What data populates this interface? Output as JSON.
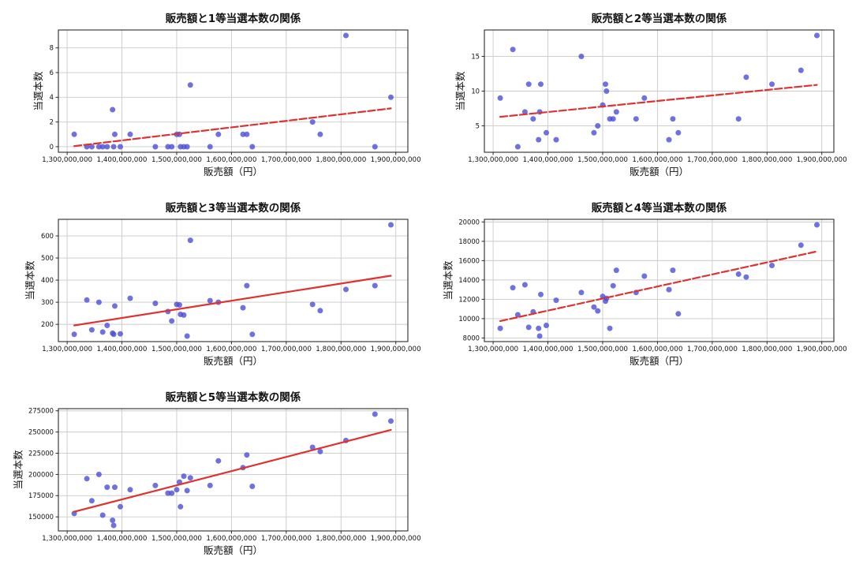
{
  "figure": {
    "background": "#ffffff",
    "grid_color": "#cacaca",
    "spine_color": "#2a2a2a",
    "tick_color": "#2a2a2a",
    "text_color": "#111111",
    "point_color": "#4b4ed6",
    "trend_color": "#e03131"
  },
  "chart_data": [
    {
      "type": "scatter",
      "title": "販売額と1等当選本数の関係",
      "xlabel": "販売額（円）",
      "ylabel": "当選本数",
      "grid": true,
      "legend": "none",
      "xlim": [
        1284000000,
        1922000000
      ],
      "ylim": [
        -0.45,
        9.45
      ],
      "x_ticks": [
        1300000000,
        1400000000,
        1500000000,
        1600000000,
        1700000000,
        1800000000,
        1900000000
      ],
      "x_tick_labels": [
        "1,300,000,000",
        "1,400,000,000",
        "1,500,000,000",
        "1,600,000,000",
        "1,700,000,000",
        "1,800,000,000",
        "1,900,000,000"
      ],
      "y_ticks": [
        0,
        2,
        4,
        6,
        8
      ],
      "y_tick_labels": [
        "0",
        "2",
        "4",
        "6",
        "8"
      ],
      "x": [
        1313000000,
        1336000000,
        1345000000,
        1358000000,
        1365000000,
        1373000000,
        1383000000,
        1385000000,
        1387000000,
        1397000000,
        1415000000,
        1461000000,
        1484000000,
        1491000000,
        1500000000,
        1505000000,
        1507000000,
        1513000000,
        1519000000,
        1525000000,
        1561000000,
        1576000000,
        1621000000,
        1628000000,
        1638000000,
        1748000000,
        1762000000,
        1809000000,
        1862000000,
        1891000000
      ],
      "y": [
        1,
        0,
        0,
        0,
        0,
        0,
        3,
        0,
        1,
        0,
        1,
        0,
        0,
        0,
        1,
        1,
        0,
        0,
        0,
        5,
        0,
        1,
        1,
        1,
        0,
        2,
        1,
        9,
        0,
        4
      ],
      "trend": {
        "x": [
          1313000000,
          1891000000
        ],
        "y": [
          0.05,
          3.1
        ],
        "style": "dashed"
      }
    },
    {
      "type": "scatter",
      "title": "販売額と2等当選本数の関係",
      "xlabel": "販売額（円）",
      "ylabel": "当選本数",
      "grid": true,
      "legend": "none",
      "xlim": [
        1284000000,
        1922000000
      ],
      "ylim": [
        1.2,
        18.8
      ],
      "x_ticks": [
        1300000000,
        1400000000,
        1500000000,
        1600000000,
        1700000000,
        1800000000,
        1900000000
      ],
      "x_tick_labels": [
        "1,300,000,000",
        "1,400,000,000",
        "1,500,000,000",
        "1,600,000,000",
        "1,700,000,000",
        "1,800,000,000",
        "1,900,000,000"
      ],
      "y_ticks": [
        5,
        10,
        15
      ],
      "y_tick_labels": [
        "5",
        "10",
        "15"
      ],
      "x": [
        1313000000,
        1336000000,
        1345000000,
        1358000000,
        1365000000,
        1373000000,
        1383000000,
        1385000000,
        1387000000,
        1397000000,
        1415000000,
        1461000000,
        1484000000,
        1491000000,
        1500000000,
        1505000000,
        1507000000,
        1513000000,
        1519000000,
        1525000000,
        1561000000,
        1576000000,
        1621000000,
        1628000000,
        1638000000,
        1748000000,
        1762000000,
        1809000000,
        1862000000,
        1891000000
      ],
      "y": [
        9,
        16,
        2,
        7,
        11,
        6,
        3,
        7,
        11,
        4,
        3,
        15,
        4,
        5,
        8,
        11,
        10,
        6,
        6,
        7,
        6,
        9,
        3,
        6,
        4,
        6,
        12,
        11,
        13,
        18
      ],
      "trend": {
        "x": [
          1313000000,
          1891000000
        ],
        "y": [
          6.3,
          10.9
        ],
        "style": "dashed"
      }
    },
    {
      "type": "scatter",
      "title": "販売額と3等当選本数の関係",
      "xlabel": "販売額（円）",
      "ylabel": "当選本数",
      "grid": true,
      "legend": "none",
      "xlim": [
        1284000000,
        1922000000
      ],
      "ylim": [
        122,
        675
      ],
      "x_ticks": [
        1300000000,
        1400000000,
        1500000000,
        1600000000,
        1700000000,
        1800000000,
        1900000000
      ],
      "x_tick_labels": [
        "1,300,000,000",
        "1,400,000,000",
        "1,500,000,000",
        "1,600,000,000",
        "1,700,000,000",
        "1,800,000,000",
        "1,900,000,000"
      ],
      "y_ticks": [
        200,
        300,
        400,
        500,
        600
      ],
      "y_tick_labels": [
        "200",
        "300",
        "400",
        "500",
        "600"
      ],
      "x": [
        1313000000,
        1336000000,
        1345000000,
        1358000000,
        1365000000,
        1373000000,
        1383000000,
        1385000000,
        1387000000,
        1397000000,
        1415000000,
        1461000000,
        1484000000,
        1491000000,
        1500000000,
        1505000000,
        1507000000,
        1513000000,
        1519000000,
        1525000000,
        1561000000,
        1576000000,
        1621000000,
        1628000000,
        1638000000,
        1748000000,
        1762000000,
        1809000000,
        1862000000,
        1891000000
      ],
      "y": [
        155,
        310,
        175,
        300,
        165,
        195,
        160,
        155,
        283,
        157,
        318,
        295,
        258,
        215,
        290,
        288,
        245,
        242,
        147,
        580,
        307,
        300,
        275,
        375,
        155,
        290,
        262,
        358,
        375,
        650
      ],
      "trend": {
        "x": [
          1313000000,
          1891000000
        ],
        "y": [
          195,
          420
        ],
        "style": "solid"
      }
    },
    {
      "type": "scatter",
      "title": "販売額と4等当選本数の関係",
      "xlabel": "販売額（円）",
      "ylabel": "当選本数",
      "grid": true,
      "legend": "none",
      "xlim": [
        1284000000,
        1922000000
      ],
      "ylim": [
        7625,
        20275
      ],
      "x_ticks": [
        1300000000,
        1400000000,
        1500000000,
        1600000000,
        1700000000,
        1800000000,
        1900000000
      ],
      "x_tick_labels": [
        "1,300,000,000",
        "1,400,000,000",
        "1,500,000,000",
        "1,600,000,000",
        "1,700,000,000",
        "1,800,000,000",
        "1,900,000,000"
      ],
      "y_ticks": [
        8000,
        10000,
        12000,
        14000,
        16000,
        18000,
        20000
      ],
      "y_tick_labels": [
        "8000",
        "10000",
        "12000",
        "14000",
        "16000",
        "18000",
        "20000"
      ],
      "x": [
        1313000000,
        1336000000,
        1345000000,
        1358000000,
        1365000000,
        1373000000,
        1383000000,
        1385000000,
        1387000000,
        1397000000,
        1415000000,
        1461000000,
        1484000000,
        1491000000,
        1500000000,
        1505000000,
        1507000000,
        1513000000,
        1519000000,
        1525000000,
        1561000000,
        1576000000,
        1621000000,
        1628000000,
        1638000000,
        1748000000,
        1762000000,
        1809000000,
        1862000000,
        1891000000
      ],
      "y": [
        9000,
        13200,
        10400,
        13500,
        9100,
        10700,
        9000,
        8200,
        12500,
        9300,
        11900,
        12700,
        11200,
        10800,
        12300,
        11800,
        12100,
        9000,
        13400,
        15000,
        12700,
        14400,
        13000,
        15000,
        10500,
        14600,
        14300,
        15500,
        17600,
        19700
      ],
      "trend": {
        "x": [
          1313000000,
          1891000000
        ],
        "y": [
          9750,
          16950
        ],
        "style": "dashed"
      }
    },
    {
      "type": "scatter",
      "title": "販売額と5等当選本数の関係",
      "xlabel": "販売額（円）",
      "ylabel": "当選本数",
      "grid": true,
      "legend": "none",
      "xlim": [
        1284000000,
        1922000000
      ],
      "ylim": [
        133450,
        277550
      ],
      "x_ticks": [
        1300000000,
        1400000000,
        1500000000,
        1600000000,
        1700000000,
        1800000000,
        1900000000
      ],
      "x_tick_labels": [
        "1,300,000,000",
        "1,400,000,000",
        "1,500,000,000",
        "1,600,000,000",
        "1,700,000,000",
        "1,800,000,000",
        "1,900,000,000"
      ],
      "y_ticks": [
        150000,
        175000,
        200000,
        225000,
        250000,
        275000
      ],
      "y_tick_labels": [
        "150000",
        "175000",
        "200000",
        "225000",
        "250000",
        "275000"
      ],
      "x": [
        1313000000,
        1336000000,
        1345000000,
        1358000000,
        1365000000,
        1373000000,
        1383000000,
        1385000000,
        1387000000,
        1397000000,
        1415000000,
        1461000000,
        1484000000,
        1491000000,
        1500000000,
        1505000000,
        1507000000,
        1513000000,
        1519000000,
        1525000000,
        1561000000,
        1576000000,
        1621000000,
        1628000000,
        1638000000,
        1748000000,
        1762000000,
        1809000000,
        1862000000,
        1891000000
      ],
      "y": [
        154000,
        195000,
        169000,
        200000,
        152000,
        185000,
        146000,
        140000,
        185000,
        162000,
        182000,
        187000,
        178000,
        178000,
        182000,
        191000,
        162000,
        198000,
        181000,
        196000,
        187000,
        216000,
        208000,
        223000,
        186000,
        232000,
        227000,
        240000,
        271000,
        263000
      ],
      "trend": {
        "x": [
          1313000000,
          1891000000
        ],
        "y": [
          156000,
          252500
        ],
        "style": "solid"
      }
    }
  ]
}
